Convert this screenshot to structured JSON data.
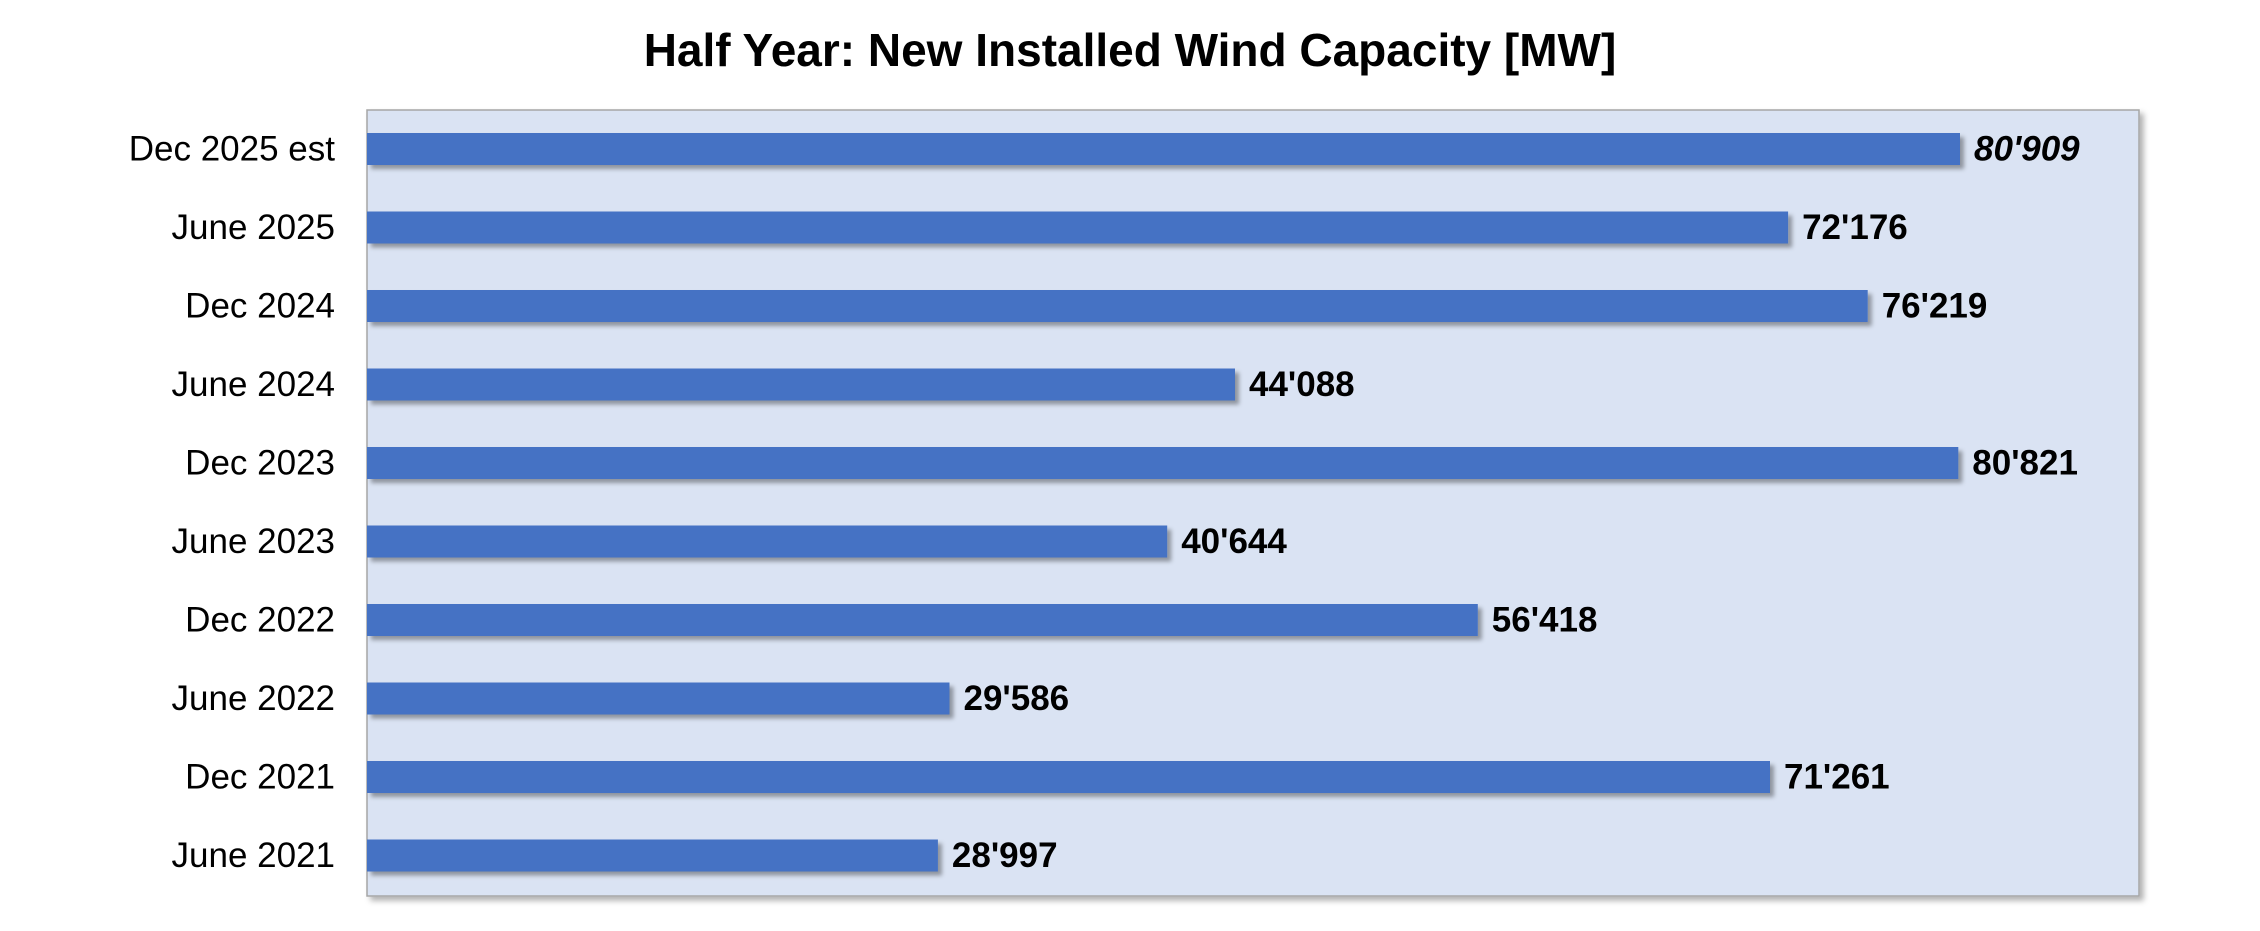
{
  "chart_data": {
    "type": "bar",
    "orientation": "horizontal",
    "title": "Half Year: New Installed Wind Capacity [MW]",
    "xlabel": "",
    "ylabel": "",
    "grid": false,
    "legend": "none",
    "xlim": [
      0,
      89000
    ],
    "colors": {
      "bar": "#4472C4",
      "plot_background": "#DAE3F3",
      "plot_border": "#A6A6A6"
    },
    "categories": [
      "Dec 2025 est",
      "June 2025",
      "Dec 2024",
      "June 2024",
      "Dec 2023",
      "June 2023",
      "Dec 2022",
      "June 2022",
      "Dec 2021",
      "June 2021"
    ],
    "values": [
      80909,
      72176,
      76219,
      44088,
      80821,
      40644,
      56418,
      29586,
      71261,
      28997
    ],
    "data_labels": [
      "80'909",
      "72'176",
      "76'219",
      "44'088",
      "80'821",
      "40'644",
      "56'418",
      "29'586",
      "71'261",
      "28'997"
    ],
    "estimate_flags": [
      true,
      false,
      false,
      false,
      false,
      false,
      false,
      false,
      false,
      false
    ]
  }
}
